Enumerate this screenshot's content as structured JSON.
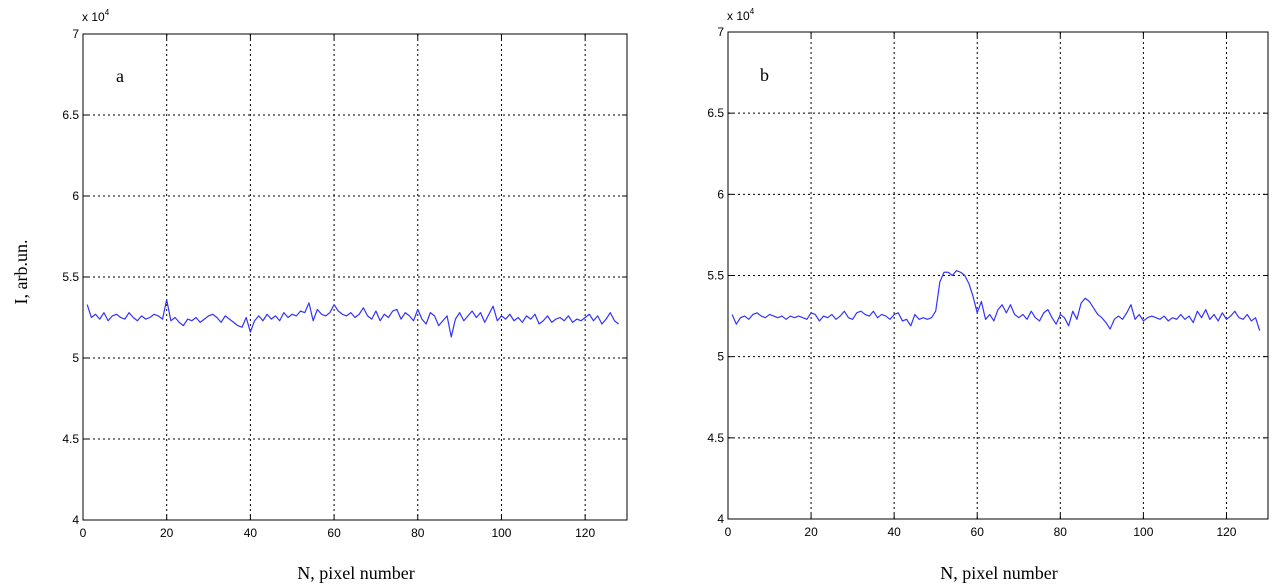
{
  "figure": {
    "ylabel": "I, arb.un."
  },
  "chart_data": [
    {
      "type": "line",
      "panel_label": "a",
      "xlabel": "N, pixel number",
      "ylabel": "I, arb.un.",
      "xlim": [
        0,
        130
      ],
      "ylim": [
        40000,
        70000
      ],
      "x_ticks": [
        0,
        20,
        40,
        60,
        80,
        100,
        120
      ],
      "y_ticks": [
        40000,
        45000,
        50000,
        55000,
        60000,
        65000,
        70000
      ],
      "y_tick_labels": [
        "4",
        "4.5",
        "5",
        "5.5",
        "6",
        "6.5",
        "7"
      ],
      "y_multiplier": {
        "base": "x 10",
        "exponent": "4"
      },
      "grid": true,
      "series_color": "#3333ff",
      "x_start": 1,
      "values": [
        53300,
        52500,
        52700,
        52400,
        52800,
        52300,
        52600,
        52700,
        52500,
        52400,
        52800,
        52500,
        52300,
        52600,
        52400,
        52500,
        52700,
        52600,
        52400,
        53600,
        52300,
        52500,
        52200,
        52000,
        52400,
        52300,
        52500,
        52200,
        52400,
        52600,
        52700,
        52500,
        52200,
        52600,
        52400,
        52200,
        52000,
        51900,
        52500,
        51600,
        52300,
        52600,
        52300,
        52700,
        52400,
        52600,
        52300,
        52800,
        52500,
        52700,
        52600,
        52900,
        52800,
        53400,
        52300,
        53000,
        52700,
        52600,
        52800,
        53300,
        52900,
        52700,
        52600,
        52800,
        52500,
        52700,
        53100,
        52600,
        52400,
        52900,
        52300,
        52700,
        52500,
        52900,
        53000,
        52400,
        52800,
        52600,
        52300,
        53000,
        52400,
        52100,
        52800,
        52600,
        52000,
        52300,
        52600,
        51300,
        52400,
        52800,
        52300,
        52600,
        52900,
        52500,
        52800,
        52200,
        52700,
        53200,
        52300,
        52600,
        52400,
        52700,
        52300,
        52500,
        52200,
        52600,
        52400,
        52700,
        52100,
        52300,
        52600,
        52200,
        52400,
        52500,
        52300,
        52600,
        52200,
        52400,
        52300,
        52500,
        52700,
        52300,
        52600,
        52100,
        52400,
        52800,
        52300,
        52100
      ]
    },
    {
      "type": "line",
      "panel_label": "b",
      "xlabel": "N, pixel number",
      "ylabel": "",
      "xlim": [
        0,
        130
      ],
      "ylim": [
        40000,
        70000
      ],
      "x_ticks": [
        0,
        20,
        40,
        60,
        80,
        100,
        120
      ],
      "y_ticks": [
        40000,
        45000,
        50000,
        55000,
        60000,
        65000,
        70000
      ],
      "y_tick_labels": [
        "4",
        "4.5",
        "5",
        "5.5",
        "6",
        "6.5",
        "7"
      ],
      "y_multiplier": {
        "base": "x 10",
        "exponent": "4"
      },
      "grid": true,
      "series_color": "#3333ff",
      "x_start": 1,
      "values": [
        52600,
        52000,
        52400,
        52500,
        52300,
        52600,
        52700,
        52500,
        52400,
        52600,
        52500,
        52400,
        52500,
        52300,
        52500,
        52400,
        52500,
        52400,
        52300,
        52700,
        52600,
        52200,
        52500,
        52400,
        52600,
        52300,
        52500,
        52800,
        52400,
        52300,
        52700,
        52800,
        52600,
        52500,
        52800,
        52400,
        52600,
        52500,
        52300,
        52600,
        52700,
        52200,
        52300,
        51900,
        52600,
        52300,
        52400,
        52300,
        52400,
        52800,
        54600,
        55200,
        55200,
        55000,
        55300,
        55200,
        55000,
        54500,
        53700,
        52700,
        53400,
        52300,
        52600,
        52200,
        52900,
        53200,
        52700,
        53200,
        52600,
        52400,
        52600,
        52300,
        52800,
        52400,
        52200,
        52700,
        52900,
        52400,
        52000,
        52600,
        52400,
        51900,
        52800,
        52300,
        53300,
        53600,
        53400,
        53000,
        52600,
        52400,
        52100,
        51700,
        52300,
        52500,
        52300,
        52700,
        53200,
        52300,
        52600,
        52200,
        52400,
        52500,
        52400,
        52300,
        52500,
        52200,
        52400,
        52300,
        52600,
        52300,
        52500,
        52100,
        52800,
        52400,
        52900,
        52300,
        52600,
        52200,
        52700,
        52300,
        52500,
        52800,
        52400,
        52300,
        52600,
        52200,
        52400,
        51600
      ]
    }
  ]
}
